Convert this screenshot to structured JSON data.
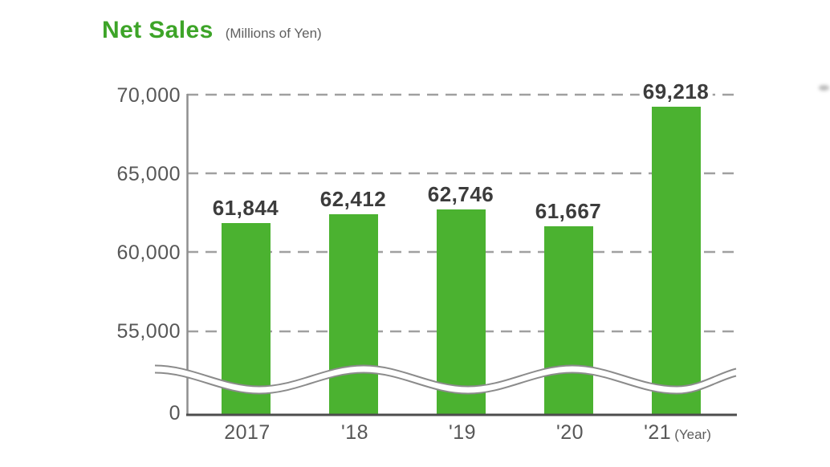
{
  "header": {
    "title": "Net Sales",
    "subtitle": "(Millions of Yen)"
  },
  "colors": {
    "bar": "#4bb230",
    "title_green": "#3da428",
    "grid": "#a0a0a0",
    "axis_dark": "#4d4d4d",
    "tick_text": "#575757",
    "value_text": "#3c3c3c"
  },
  "chart_data": {
    "type": "bar",
    "title": "Net Sales",
    "unit_label": "(Millions of Yen)",
    "categories": [
      "2017",
      "'18",
      "'19",
      "'20",
      "'21"
    ],
    "values": [
      61844,
      62412,
      62746,
      61667,
      69218
    ],
    "data_labels": [
      "61,844",
      "62,412",
      "62,746",
      "61,667",
      "69,218"
    ],
    "x_suffix": "(Year)",
    "yticks": [
      70000,
      65000,
      60000,
      55000,
      0
    ],
    "ytick_labels": [
      "70,000",
      "65,000",
      "60,000",
      "55,000",
      "0"
    ],
    "ylim_visible": [
      55000,
      70000
    ],
    "axis_break": true,
    "grid": "dashed horizontal",
    "legend": "none",
    "xlabel": "Year",
    "ylabel": ""
  }
}
